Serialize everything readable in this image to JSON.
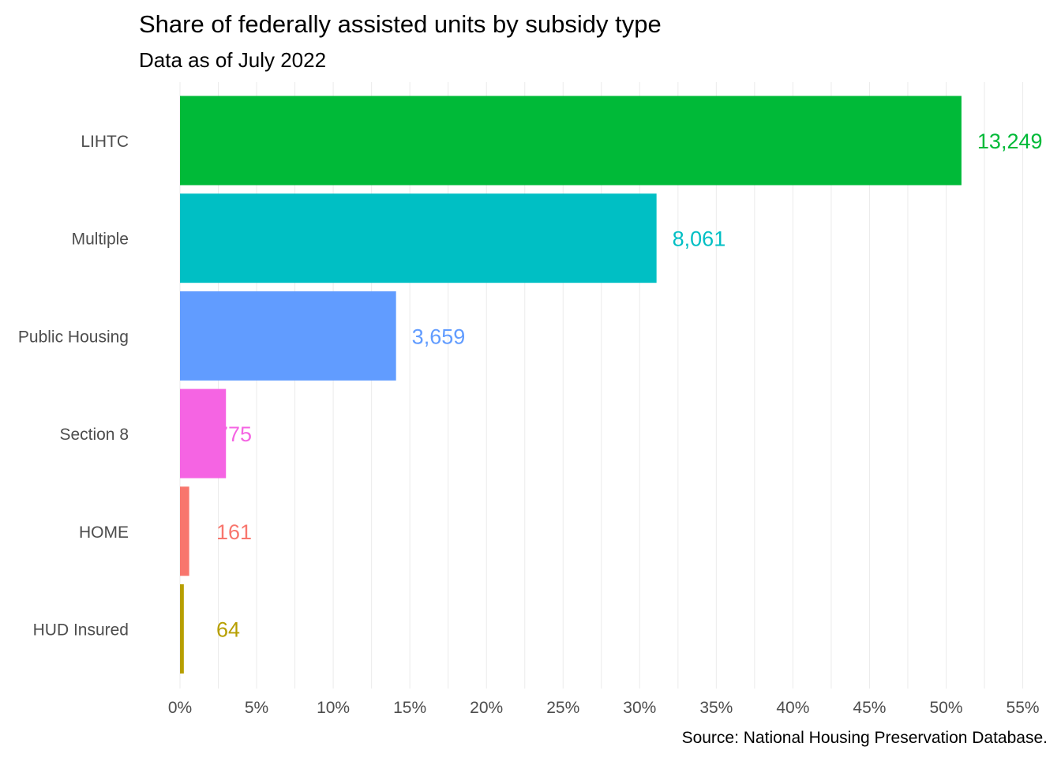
{
  "chart_data": {
    "type": "bar",
    "orientation": "horizontal",
    "title": "Share of federally assisted units by subsidy type",
    "subtitle": "Data as of July 2022",
    "caption": "Source: National Housing Preservation Database.",
    "xlabel": "",
    "ylabel": "",
    "xlim": [
      0,
      55
    ],
    "x_ticks": [
      0,
      5,
      10,
      15,
      20,
      25,
      30,
      35,
      40,
      45,
      50,
      55
    ],
    "x_tick_labels": [
      "0%",
      "5%",
      "10%",
      "15%",
      "20%",
      "25%",
      "30%",
      "35%",
      "40%",
      "45%",
      "50%",
      "55%"
    ],
    "grid": true,
    "legend": "none",
    "categories": [
      "LIHTC",
      "Multiple",
      "Public Housing",
      "Section 8",
      "HOME",
      "HUD Insured"
    ],
    "values": [
      51.0,
      31.1,
      14.1,
      3.0,
      0.6,
      0.25
    ],
    "data_labels": [
      "13,249",
      "8,061",
      "3,659",
      "775",
      "161",
      "64"
    ],
    "colors": [
      "#00ba38",
      "#00bfc4",
      "#619cff",
      "#f564e3",
      "#f8766d",
      "#b79f00"
    ]
  }
}
